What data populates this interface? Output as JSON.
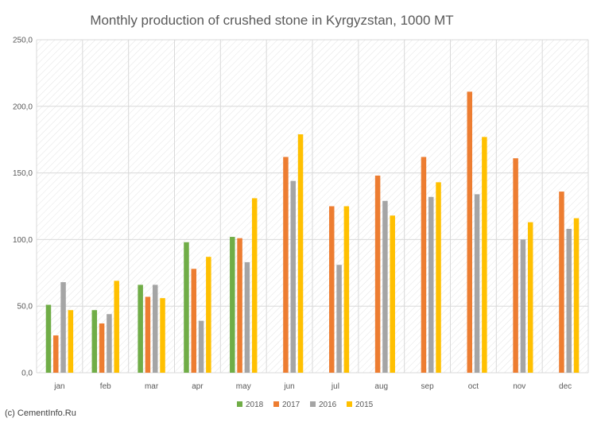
{
  "chart_data": {
    "type": "bar",
    "title": "Monthly production of crushed stone in Kyrgyzstan, 1000 MT",
    "categories": [
      "jan",
      "feb",
      "mar",
      "apr",
      "may",
      "jun",
      "jul",
      "aug",
      "sep",
      "oct",
      "nov",
      "dec"
    ],
    "ylim": [
      0,
      250
    ],
    "yticks": [
      "0,0",
      "50,0",
      "100,0",
      "150,0",
      "200,0",
      "250,0"
    ],
    "grid": true,
    "legend_position": "bottom",
    "series": [
      {
        "name": "2018",
        "color": "#70ad47",
        "values": [
          51,
          47,
          66,
          98,
          102,
          null,
          null,
          null,
          null,
          null,
          null,
          null
        ]
      },
      {
        "name": "2017",
        "color": "#ed7d31",
        "values": [
          28,
          37,
          57,
          78,
          101,
          162,
          125,
          148,
          162,
          211,
          161,
          136
        ]
      },
      {
        "name": "2016",
        "color": "#a5a5a5",
        "values": [
          68,
          44,
          66,
          39,
          83,
          144,
          81,
          129,
          132,
          134,
          100,
          108
        ]
      },
      {
        "name": "2015",
        "color": "#ffc000",
        "values": [
          47,
          69,
          56,
          87,
          131,
          179,
          125,
          118,
          143,
          177,
          113,
          116
        ]
      }
    ]
  },
  "credit": "(c) CementInfo.Ru"
}
